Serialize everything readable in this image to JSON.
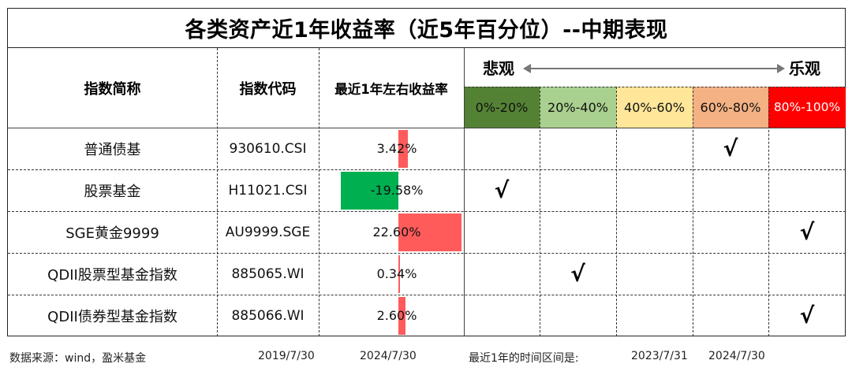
{
  "title": "各类资产近1年收益率（近5年百分位）--中期表现",
  "headers": {
    "name": "指数简称",
    "code": "指数代码",
    "return": "最近1年左右收益率",
    "pessimistic": "悲观",
    "optimistic": "乐观"
  },
  "percentile_bands": [
    {
      "label": "0%-20%",
      "color": "#548235"
    },
    {
      "label": "20%-40%",
      "color": "#a9d08e"
    },
    {
      "label": "40%-60%",
      "color": "#ffe699"
    },
    {
      "label": "60%-80%",
      "color": "#f4b183"
    },
    {
      "label": "80%-100%",
      "color": "#ff0000"
    }
  ],
  "check_mark": "√",
  "rows": [
    {
      "name": "普通债基",
      "code": "930610.CSI",
      "return_text": "3.42%",
      "return": 3.42,
      "band": 3
    },
    {
      "name": "股票基金",
      "code": "H11021.CSI",
      "return_text": "-19.58%",
      "return": -19.58,
      "band": 0
    },
    {
      "name": "SGE黄金9999",
      "code": "AU9999.SGE",
      "return_text": "22.60%",
      "return": 22.6,
      "band": 4
    },
    {
      "name": "QDII股票型基金指数",
      "code": "885065.WI",
      "return_text": "0.34%",
      "return": 0.34,
      "band": 1
    },
    {
      "name": "QDII债券型基金指数",
      "code": "885066.WI",
      "return_text": "2.60%",
      "return": 2.6,
      "band": 4
    }
  ],
  "bar_colors": {
    "positive": "#ff5b5b",
    "negative": "#00b050"
  },
  "footer": {
    "source": "数据来源：wind，盈米基金",
    "date_start": "2019/7/30",
    "date_end": "2024/7/30",
    "window_label": "最近1年的时间区间是:",
    "window_start": "2023/7/31",
    "window_end": "2024/7/30"
  }
}
